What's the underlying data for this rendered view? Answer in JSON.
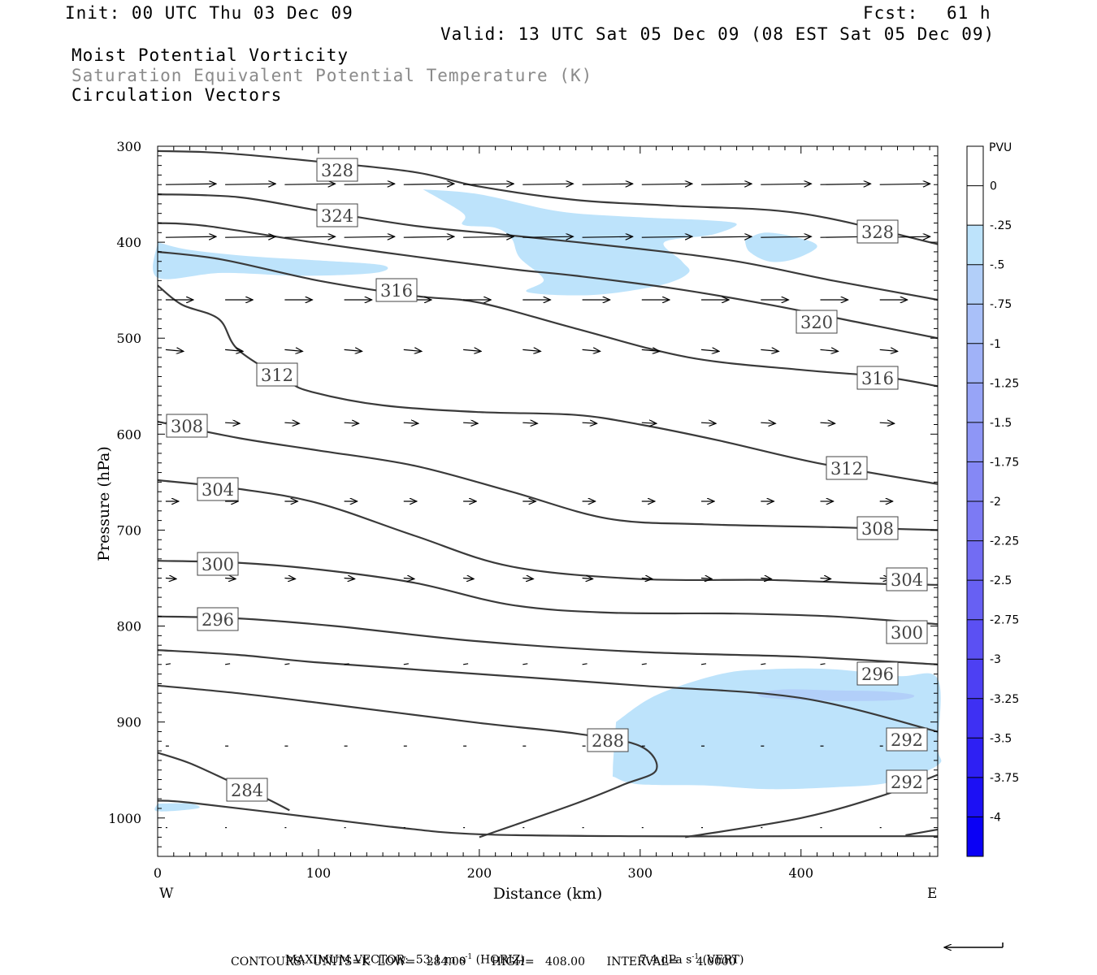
{
  "header": {
    "init": "Init: 00 UTC Thu 03 Dec 09",
    "fcst_label": "Fcst:",
    "fcst_value": "61 h",
    "valid": "Valid: 13 UTC Sat 05 Dec 09 (08 EST Sat 05 Dec 09)",
    "field1": "Moist Potential Vorticity",
    "field2": "Saturation Equivalent Potential Temperature (K)",
    "field3": "Circulation Vectors"
  },
  "chart_data": {
    "type": "cross-section contour",
    "xlabel": "Distance (km)",
    "ylabel": "Pressure (hPa)",
    "xlim": [
      0,
      485
    ],
    "ylim": [
      300,
      1040
    ],
    "x_ticks": [
      "0",
      "100",
      "200",
      "300",
      "400"
    ],
    "y_ticks": [
      "300",
      "400",
      "500",
      "600",
      "700",
      "800",
      "900",
      "1000"
    ],
    "left_end_label": "W",
    "right_end_label": "E",
    "colorbar": {
      "title": "PVU",
      "labels": [
        "0",
        "-.25",
        "-.5",
        "-.75",
        "-1",
        "-1.25",
        "-1.5",
        "-1.75",
        "-2",
        "-2.25",
        "-2.5",
        "-2.75",
        "-3",
        "-3.25",
        "-3.5",
        "-3.75",
        "-4"
      ],
      "colors": [
        "#ffffff",
        "#ffffff",
        "#bde3fb",
        "#b2cff9",
        "#a9c0f9",
        "#a0b2f8",
        "#97a4f7",
        "#8e96f6",
        "#8588f5",
        "#7c7af4",
        "#726cf3",
        "#6760f3",
        "#5b50f3",
        "#4d40f3",
        "#3e30f3",
        "#2e20f3",
        "#1c10f4",
        "#0a00f5"
      ]
    },
    "theta_es_contours": [
      {
        "label": "328",
        "points": [
          [
            0,
            305
          ],
          [
            40,
            307
          ],
          [
            100,
            316
          ],
          [
            160,
            327
          ],
          [
            200,
            342
          ],
          [
            260,
            356
          ],
          [
            320,
            362
          ],
          [
            400,
            370
          ],
          [
            485,
            402
          ]
        ]
      },
      {
        "label": "324",
        "points": [
          [
            0,
            350
          ],
          [
            50,
            353
          ],
          [
            100,
            367
          ],
          [
            160,
            383
          ],
          [
            220,
            393
          ],
          [
            300,
            407
          ],
          [
            360,
            420
          ],
          [
            420,
            440
          ],
          [
            485,
            460
          ]
        ]
      },
      {
        "label": "320",
        "points": [
          [
            0,
            380
          ],
          [
            30,
            383
          ],
          [
            100,
            401
          ],
          [
            160,
            415
          ],
          [
            220,
            428
          ],
          [
            260,
            435
          ],
          [
            320,
            448
          ],
          [
            380,
            465
          ],
          [
            440,
            485
          ],
          [
            485,
            500
          ]
        ]
      },
      {
        "label": "316",
        "points": [
          [
            0,
            410
          ],
          [
            40,
            418
          ],
          [
            100,
            440
          ],
          [
            160,
            456
          ],
          [
            200,
            463
          ],
          [
            260,
            490
          ],
          [
            330,
            520
          ],
          [
            400,
            533
          ],
          [
            450,
            540
          ],
          [
            485,
            550
          ]
        ]
      },
      {
        "label": "312",
        "points": [
          [
            0,
            445
          ],
          [
            15,
            465
          ],
          [
            38,
            480
          ],
          [
            50,
            512
          ],
          [
            80,
            544
          ],
          [
            96,
            556
          ],
          [
            140,
            570
          ],
          [
            200,
            577
          ],
          [
            260,
            580
          ],
          [
            300,
            590
          ],
          [
            350,
            607
          ],
          [
            410,
            630
          ],
          [
            485,
            652
          ]
        ]
      },
      {
        "label": "308",
        "points": [
          [
            0,
            587
          ],
          [
            50,
            604
          ],
          [
            100,
            617
          ],
          [
            160,
            633
          ],
          [
            220,
            660
          ],
          [
            280,
            688
          ],
          [
            340,
            694
          ],
          [
            420,
            697
          ],
          [
            485,
            700
          ]
        ]
      },
      {
        "label": "304",
        "points": [
          [
            0,
            648
          ],
          [
            50,
            657
          ],
          [
            100,
            672
          ],
          [
            160,
            706
          ],
          [
            220,
            738
          ],
          [
            300,
            751
          ],
          [
            380,
            752
          ],
          [
            450,
            756
          ],
          [
            485,
            757
          ]
        ]
      },
      {
        "label": "300",
        "points": [
          [
            0,
            732
          ],
          [
            50,
            734
          ],
          [
            100,
            741
          ],
          [
            160,
            755
          ],
          [
            220,
            778
          ],
          [
            280,
            786
          ],
          [
            360,
            787
          ],
          [
            420,
            790
          ],
          [
            485,
            798
          ]
        ]
      },
      {
        "label": "296",
        "points": [
          [
            0,
            790
          ],
          [
            50,
            792
          ],
          [
            110,
            800
          ],
          [
            200,
            816
          ],
          [
            300,
            827
          ],
          [
            400,
            832
          ],
          [
            485,
            840
          ]
        ]
      },
      {
        "label": "292",
        "points": [
          [
            0,
            825
          ],
          [
            50,
            830
          ],
          [
            100,
            838
          ],
          [
            200,
            850
          ],
          [
            300,
            862
          ],
          [
            400,
            875
          ],
          [
            485,
            910
          ]
        ]
      },
      {
        "label": "288",
        "points": [
          [
            0,
            862
          ],
          [
            50,
            870
          ],
          [
            100,
            880
          ],
          [
            200,
            901
          ],
          [
            260,
            912
          ],
          [
            300,
            925
          ],
          [
            310,
            950
          ],
          [
            290,
            965
          ],
          [
            260,
            985
          ],
          [
            200,
            1020
          ]
        ]
      },
      {
        "label": "292",
        "points": [
          [
            328,
            1020
          ],
          [
            400,
            1000
          ],
          [
            450,
            977
          ],
          [
            485,
            955
          ]
        ]
      },
      {
        "label": "284",
        "points": [
          [
            0,
            932
          ],
          [
            20,
            943
          ],
          [
            45,
            962
          ],
          [
            68,
            980
          ],
          [
            82,
            992
          ]
        ]
      },
      {
        "label": "",
        "points": [
          [
            0,
            982
          ],
          [
            20,
            984
          ],
          [
            100,
            1000
          ],
          [
            150,
            1010
          ],
          [
            200,
            1017
          ],
          [
            300,
            1019
          ],
          [
            400,
            1019
          ],
          [
            485,
            1019
          ]
        ]
      },
      {
        "label": "",
        "points": [
          [
            465,
            1018
          ],
          [
            485,
            1012
          ]
        ]
      }
    ],
    "mpv_shaded_regions": [
      {
        "level": "-.25 to -.5",
        "points": [
          [
            165,
            345
          ],
          [
            200,
            350
          ],
          [
            250,
            368
          ],
          [
            300,
            374
          ],
          [
            340,
            377
          ],
          [
            360,
            381
          ],
          [
            345,
            392
          ],
          [
            315,
            400
          ],
          [
            326,
            420
          ],
          [
            330,
            432
          ],
          [
            312,
            445
          ],
          [
            270,
            455
          ],
          [
            230,
            452
          ],
          [
            240,
            439
          ],
          [
            225,
            416
          ],
          [
            220,
            396
          ],
          [
            210,
            385
          ],
          [
            190,
            382
          ],
          [
            190,
            370
          ]
        ]
      },
      {
        "label_hidden": true,
        "level": "-.25 to -.5",
        "points": [
          [
            365,
            398
          ],
          [
            378,
            390
          ],
          [
            400,
            396
          ],
          [
            410,
            405
          ],
          [
            395,
            418
          ],
          [
            380,
            420
          ],
          [
            368,
            410
          ]
        ]
      },
      {
        "level": "-.25 to -.5",
        "points": [
          [
            0,
            400
          ],
          [
            20,
            408
          ],
          [
            60,
            415
          ],
          [
            100,
            419
          ],
          [
            140,
            424
          ],
          [
            135,
            432
          ],
          [
            90,
            435
          ],
          [
            40,
            432
          ],
          [
            0,
            437
          ]
        ]
      },
      {
        "level": "-.25 to -.5",
        "points": [
          [
            285,
            900
          ],
          [
            310,
            872
          ],
          [
            350,
            850
          ],
          [
            380,
            845
          ],
          [
            420,
            845
          ],
          [
            460,
            852
          ],
          [
            485,
            855
          ],
          [
            485,
            925
          ],
          [
            485,
            945
          ],
          [
            455,
            963
          ],
          [
            420,
            968
          ],
          [
            380,
            970
          ],
          [
            340,
            966
          ],
          [
            300,
            965
          ],
          [
            285,
            958
          ],
          [
            283,
            950
          ]
        ]
      },
      {
        "level": "-.5 to -.75",
        "points": [
          [
            372,
            870
          ],
          [
            390,
            866
          ],
          [
            420,
            867
          ],
          [
            450,
            868
          ],
          [
            470,
            872
          ],
          [
            460,
            877
          ],
          [
            420,
            878
          ],
          [
            380,
            875
          ]
        ]
      },
      {
        "level": "-.25 to -.5",
        "points": [
          [
            0,
            985
          ],
          [
            20,
            985
          ],
          [
            25,
            990
          ],
          [
            0,
            993
          ]
        ]
      }
    ],
    "footer": {
      "max_vector_label": "MAXIMUM VECTOR:",
      "max_vector_horiz": "53.1",
      "max_vector_horiz_units": "m s",
      "max_vector_horiz_tag": "(HORIZ)",
      "max_vector_vert": "7.4",
      "max_vector_vert_units": "dPa s",
      "max_vector_vert_tag": "(VERT)",
      "exponent": "-1",
      "contours_line": "CONTOURS:  UNITS=K  LOW=   284.00       HIGH=   408.00      INTERVAL=     4.0000"
    }
  }
}
